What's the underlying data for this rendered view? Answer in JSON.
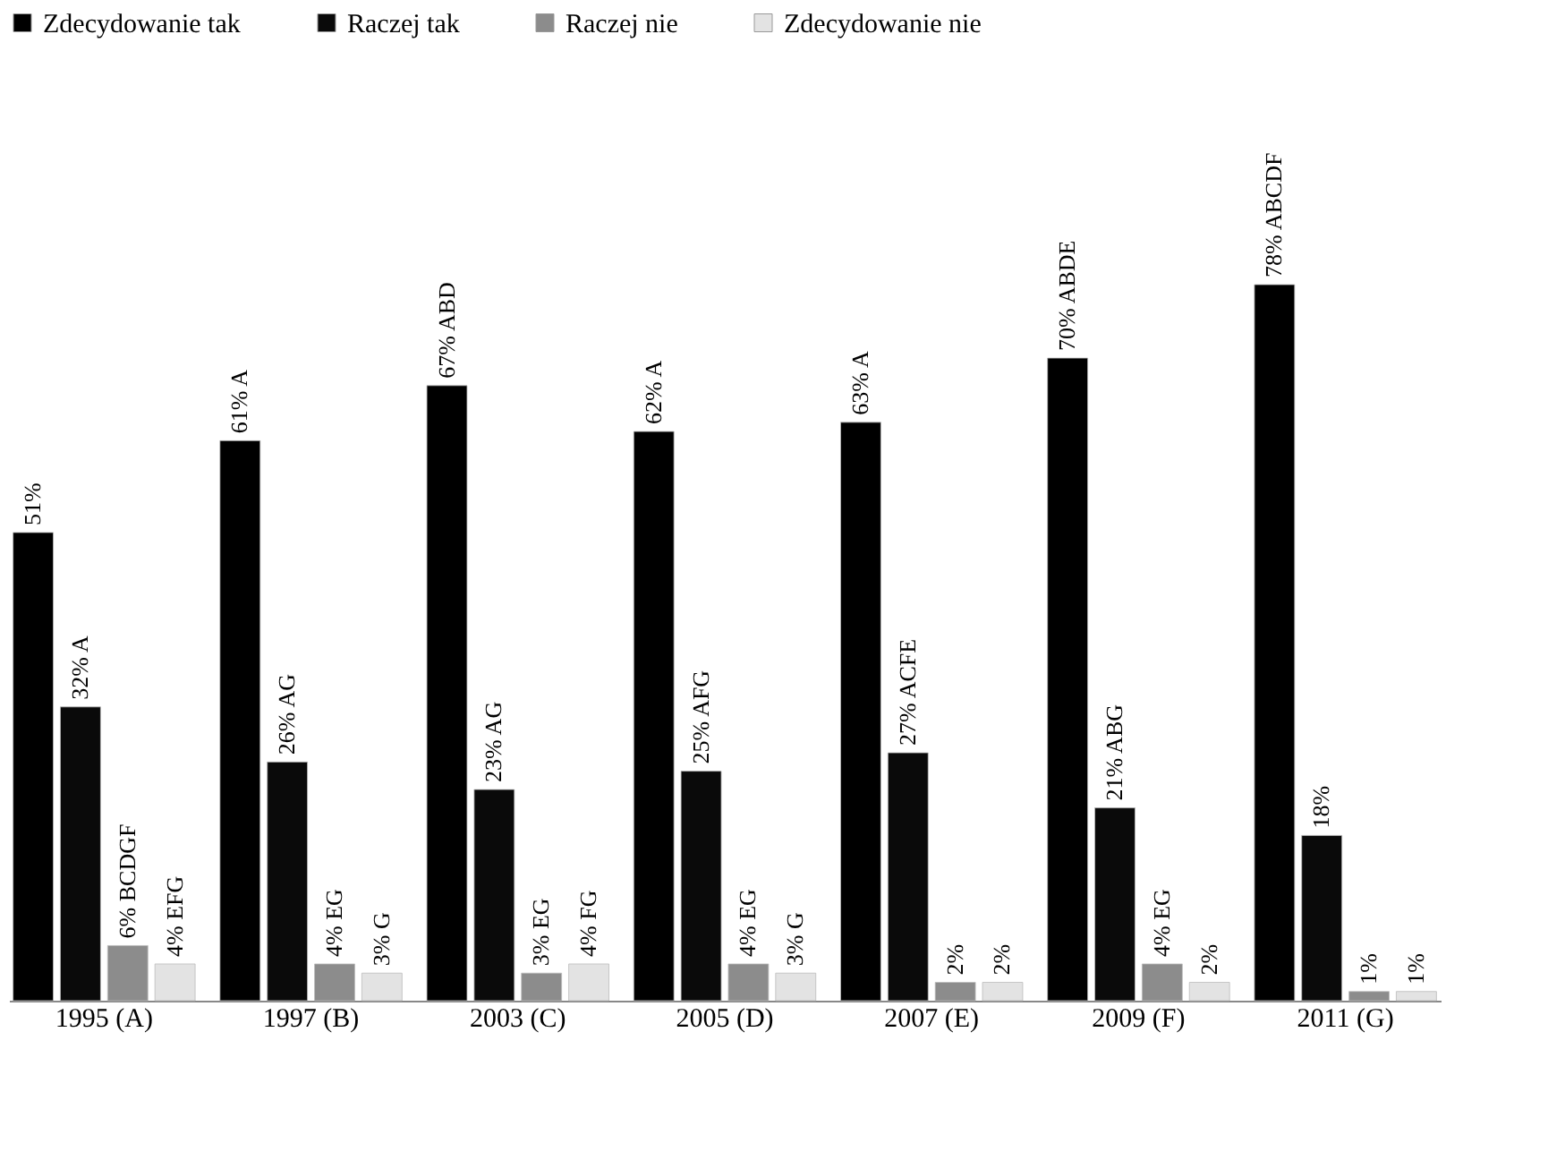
{
  "chart_data": {
    "type": "bar",
    "categories": [
      "1995 (A)",
      "1997 (B)",
      "2003 (C)",
      "2005 (D)",
      "2007 (E)",
      "2009 (F)",
      "2011 (G)"
    ],
    "series": [
      {
        "name": "Zdecydowanie tak",
        "color": "#000000",
        "values": [
          51,
          61,
          67,
          62,
          63,
          70,
          78
        ],
        "value_labels": [
          "51%",
          "61% A",
          "67% ABD",
          "62% A",
          "63% A",
          "70% ABDE",
          "78% ABCDF"
        ]
      },
      {
        "name": "Raczej tak",
        "color": "#0a0a0a",
        "values": [
          32,
          26,
          23,
          25,
          27,
          21,
          18
        ],
        "value_labels": [
          "32% A",
          "26% AG",
          "23% AG",
          "25% AFG",
          "27% ACFE",
          "21% ABG",
          "18%"
        ]
      },
      {
        "name": "Raczej nie",
        "color": "#8c8c8c",
        "values": [
          6,
          4,
          3,
          4,
          2,
          4,
          1
        ],
        "value_labels": [
          "6% BCDGF",
          "4% EG",
          "3% EG",
          "4% EG",
          "2%",
          "4% EG",
          "1%"
        ]
      },
      {
        "name": "Zdecydowanie nie",
        "color": "#e3e3e3",
        "values": [
          4,
          3,
          4,
          3,
          2,
          2,
          1
        ],
        "value_labels": [
          "4% EFG",
          "3% G",
          "4% FG",
          "3% G",
          "2%",
          "2%",
          "1%"
        ]
      }
    ],
    "grid": false,
    "legend": "top"
  }
}
